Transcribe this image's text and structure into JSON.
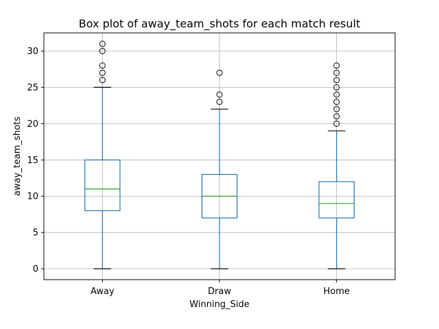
{
  "chart_data": {
    "type": "box",
    "title": "Box plot of away_team_shots for each match result",
    "xlabel": "Winning_Side",
    "ylabel": "away_team_shots",
    "ylim": [
      -1.5,
      32.5
    ],
    "yticks": [
      0,
      5,
      10,
      15,
      20,
      25,
      30
    ],
    "grid": true,
    "colors": {
      "box": "#1f77b4",
      "median": "#2ca02c",
      "whisker": "#1f77b4",
      "cap": "#000000",
      "grid": "#b0b0b0",
      "flier": "#000000"
    },
    "categories": [
      "Away",
      "Draw",
      "Home"
    ],
    "boxes": [
      {
        "category": "Away",
        "whisker_low": 0,
        "q1": 8,
        "median": 11,
        "q3": 15,
        "whisker_high": 25,
        "fliers": [
          26,
          27,
          28,
          30,
          31
        ]
      },
      {
        "category": "Draw",
        "whisker_low": 0,
        "q1": 7,
        "median": 10,
        "q3": 13,
        "whisker_high": 22,
        "fliers": [
          23,
          24,
          27
        ]
      },
      {
        "category": "Home",
        "whisker_low": 0,
        "q1": 7,
        "median": 9,
        "q3": 12,
        "whisker_high": 19,
        "fliers": [
          20,
          21,
          22,
          23,
          24,
          25,
          26,
          27,
          28
        ]
      }
    ]
  }
}
